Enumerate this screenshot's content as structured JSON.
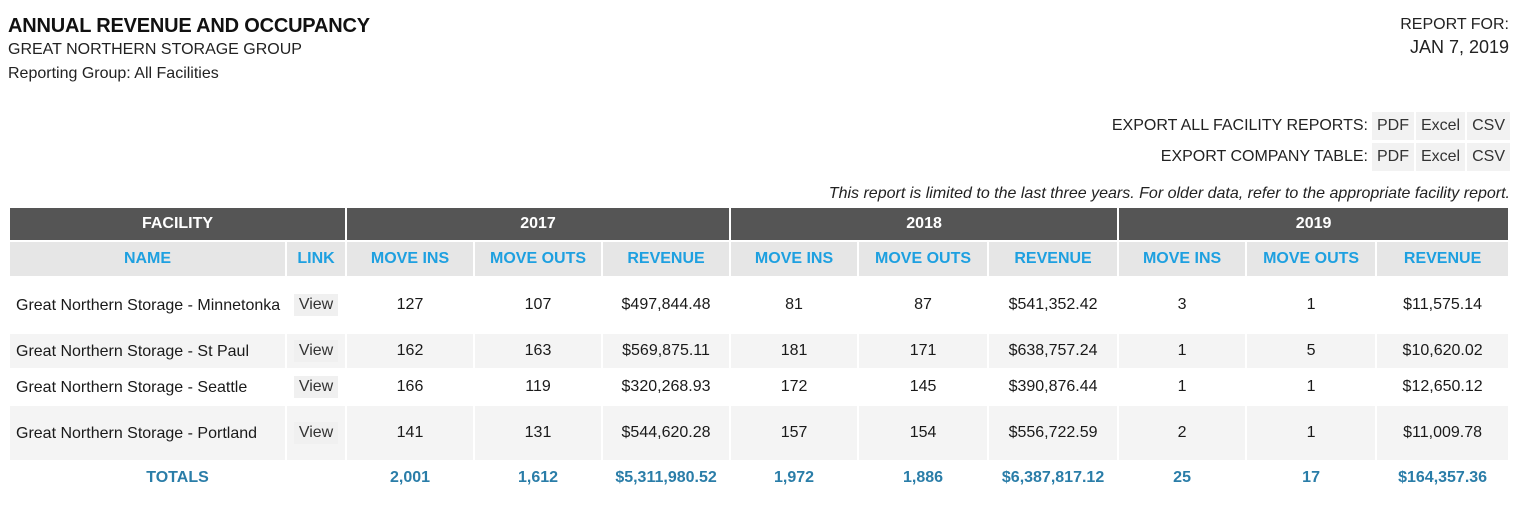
{
  "header": {
    "title": "ANNUAL REVENUE AND OCCUPANCY",
    "company": "GREAT NORTHERN STORAGE GROUP",
    "reporting_group": "Reporting Group: All Facilities",
    "report_for_label": "REPORT FOR:",
    "report_date": "JAN 7, 2019"
  },
  "exports": {
    "all_label": "EXPORT ALL FACILITY REPORTS:",
    "company_label": "EXPORT COMPANY TABLE:",
    "pdf": "PDF",
    "excel": "Excel",
    "csv": "CSV"
  },
  "note": "This report is limited to the last three years. For older data, refer to the appropriate facility report.",
  "table": {
    "groups": {
      "facility": "FACILITY",
      "y1": "2017",
      "y2": "2018",
      "y3": "2019"
    },
    "columns": {
      "name": "NAME",
      "link": "LINK",
      "move_ins": "MOVE INS",
      "move_outs": "MOVE OUTS",
      "revenue": "REVENUE"
    },
    "rows": [
      {
        "name": "Great Northern Storage - Minnetonka",
        "link": "View",
        "y1": [
          "127",
          "107",
          "$497,844.48"
        ],
        "y2": [
          "81",
          "87",
          "$541,352.42"
        ],
        "y3": [
          "3",
          "1",
          "$11,575.14"
        ]
      },
      {
        "name": "Great Northern Storage - St Paul",
        "link": "View",
        "y1": [
          "162",
          "163",
          "$569,875.11"
        ],
        "y2": [
          "181",
          "171",
          "$638,757.24"
        ],
        "y3": [
          "1",
          "5",
          "$10,620.02"
        ]
      },
      {
        "name": "Great Northern Storage - Seattle",
        "link": "View",
        "y1": [
          "166",
          "119",
          "$320,268.93"
        ],
        "y2": [
          "172",
          "145",
          "$390,876.44"
        ],
        "y3": [
          "1",
          "1",
          "$12,650.12"
        ]
      },
      {
        "name": "Great Northern Storage - Portland",
        "link": "View",
        "y1": [
          "141",
          "131",
          "$544,620.28"
        ],
        "y2": [
          "157",
          "154",
          "$556,722.59"
        ],
        "y3": [
          "2",
          "1",
          "$11,009.78"
        ]
      }
    ],
    "totals": {
      "label": "TOTALS",
      "y1": [
        "2,001",
        "1,612",
        "$5,311,980.52"
      ],
      "y2": [
        "1,972",
        "1,886",
        "$6,387,817.12"
      ],
      "y3": [
        "25",
        "17",
        "$164,357.36"
      ]
    }
  }
}
